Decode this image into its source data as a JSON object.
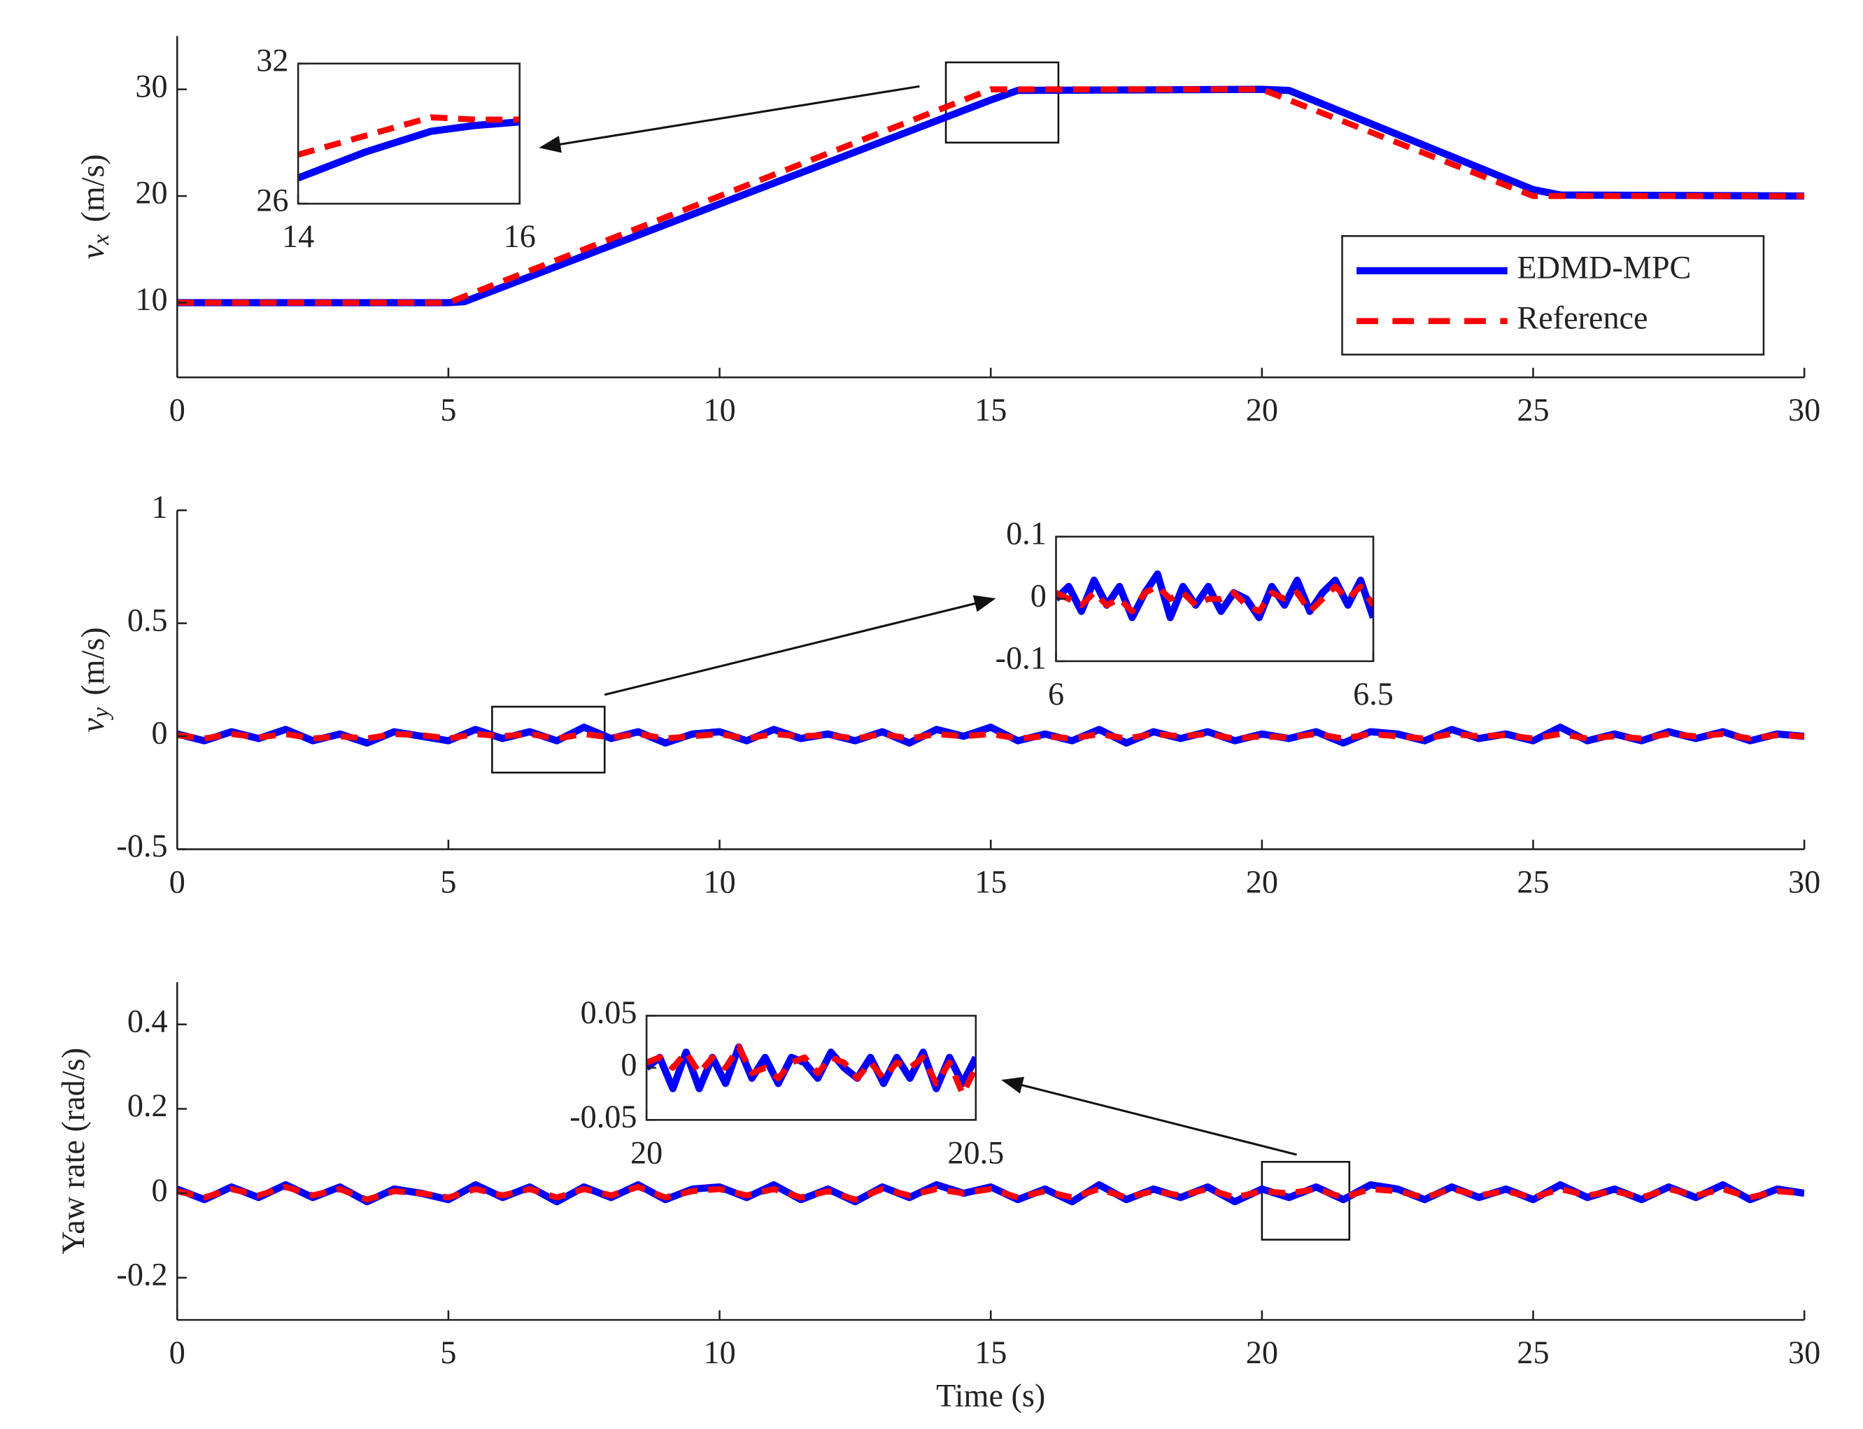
{
  "chart_data": [
    {
      "type": "line",
      "ylabel_symbol": "v",
      "ylabel_subscript": "x",
      "ylabel_unit": "(m/s)",
      "legend": "lower right",
      "x": [
        0,
        5,
        5.3,
        15,
        15.5,
        20,
        20.5,
        25,
        25.5,
        30
      ],
      "series": [
        {
          "name": "EDMD-MPC",
          "color": "#0000ff",
          "linestyle": "solid",
          "values": [
            10,
            10,
            10.1,
            29.0,
            29.9,
            30,
            29.9,
            20.6,
            20.1,
            20
          ]
        },
        {
          "name": "Reference",
          "color": "#ff0000",
          "linestyle": "dashed",
          "values": [
            10,
            10,
            10.6,
            30,
            30,
            30,
            29.0,
            20,
            20,
            20
          ]
        }
      ],
      "xlim": [
        0,
        30
      ],
      "ylim": [
        3,
        35
      ],
      "xticks": [
        0,
        5,
        10,
        15,
        20,
        25,
        30
      ],
      "yticks": [
        10,
        20,
        30
      ]
    },
    {
      "type": "line",
      "x": [
        14,
        14.6,
        15.2,
        15.6,
        16
      ],
      "series": [
        {
          "color": "#0000ff",
          "linestyle": "solid",
          "values": [
            27.1,
            28.2,
            29.1,
            29.35,
            29.5
          ]
        },
        {
          "color": "#ff0000",
          "linestyle": "dashed",
          "values": [
            28.1,
            28.9,
            29.7,
            29.6,
            29.6
          ]
        }
      ],
      "xlim": [
        14,
        16
      ],
      "ylim": [
        26,
        32
      ],
      "xticks": [
        14,
        16
      ],
      "yticks": [
        26,
        32
      ]
    },
    {
      "type": "line",
      "ylabel_symbol": "v",
      "ylabel_subscript": "y",
      "ylabel_unit": "(m/s)",
      "x": [
        0,
        0.5,
        1,
        1.5,
        2,
        2.5,
        3,
        3.5,
        4,
        4.5,
        5,
        5.5,
        6,
        6.5,
        7,
        7.5,
        8,
        8.5,
        9,
        9.5,
        10,
        10.5,
        11,
        11.5,
        12,
        12.5,
        13,
        13.5,
        14,
        14.5,
        15,
        15.5,
        16,
        16.5,
        17,
        17.5,
        18,
        18.5,
        19,
        19.5,
        20,
        20.5,
        21,
        21.5,
        22,
        22.5,
        23,
        23.5,
        24,
        24.5,
        25,
        25.5,
        26,
        26.5,
        27,
        27.5,
        28,
        28.5,
        29,
        29.5,
        30
      ],
      "series": [
        {
          "color": "#0000ff",
          "linestyle": "solid",
          "values": [
            0.01,
            -0.02,
            0.02,
            -0.01,
            0.03,
            -0.02,
            0.01,
            -0.03,
            0.02,
            0,
            -0.02,
            0.03,
            -0.01,
            0.02,
            -0.02,
            0.04,
            -0.01,
            0.02,
            -0.03,
            0.01,
            0.02,
            -0.02,
            0.03,
            -0.01,
            0.01,
            -0.02,
            0.02,
            -0.03,
            0.03,
            0,
            0.04,
            -0.02,
            0.01,
            -0.02,
            0.03,
            -0.03,
            0.02,
            -0.01,
            0.02,
            -0.02,
            0.01,
            -0.01,
            0.02,
            -0.03,
            0.02,
            0.01,
            -0.02,
            0.03,
            -0.01,
            0.01,
            -0.02,
            0.04,
            -0.02,
            0.01,
            -0.02,
            0.02,
            -0.01,
            0.02,
            -0.02,
            0.01,
            0
          ]
        },
        {
          "color": "#ff0000",
          "linestyle": "dashed",
          "values": [
            0.005,
            -0.01,
            0.01,
            -0.005,
            0.01,
            -0.01,
            0,
            -0.01,
            0.01,
            0.005,
            -0.01,
            0.01,
            0,
            0.01,
            -0.01,
            0.01,
            -0.005,
            0.01,
            -0.01,
            0,
            0.01,
            -0.01,
            0.01,
            0,
            0.005,
            -0.01,
            0.01,
            -0.01,
            0.01,
            0,
            0.01,
            -0.01,
            0,
            -0.01,
            0.01,
            -0.01,
            0.01,
            0,
            0.01,
            -0.01,
            0,
            -0.005,
            0.01,
            -0.01,
            0.01,
            0,
            -0.01,
            0.01,
            0,
            0.005,
            -0.01,
            0.01,
            -0.01,
            0,
            -0.01,
            0.01,
            0,
            0.01,
            -0.01,
            0.005,
            0
          ]
        }
      ],
      "xlim": [
        0,
        30
      ],
      "ylim": [
        -0.5,
        1
      ],
      "xticks": [
        0,
        5,
        10,
        15,
        20,
        25,
        30
      ],
      "yticks": [
        -0.5,
        0,
        0.5,
        1
      ]
    },
    {
      "type": "line",
      "x": [
        6,
        6.02,
        6.04,
        6.06,
        6.08,
        6.1,
        6.12,
        6.14,
        6.16,
        6.18,
        6.2,
        6.22,
        6.24,
        6.26,
        6.28,
        6.3,
        6.32,
        6.34,
        6.36,
        6.38,
        6.4,
        6.42,
        6.44,
        6.46,
        6.48,
        6.5
      ],
      "series": [
        {
          "color": "#0000ff",
          "linestyle": "solid",
          "values": [
            0,
            0.02,
            -0.02,
            0.03,
            -0.01,
            0.02,
            -0.03,
            0.01,
            0.04,
            -0.03,
            0.02,
            -0.01,
            0.02,
            -0.02,
            0.01,
            0,
            -0.03,
            0.02,
            -0.01,
            0.03,
            -0.02,
            0.01,
            0.03,
            -0.01,
            0.03,
            -0.03
          ]
        },
        {
          "color": "#ff0000",
          "linestyle": "dashed",
          "values": [
            0.01,
            0,
            -0.01,
            0.01,
            -0.01,
            0,
            -0.02,
            0.01,
            0.02,
            0,
            0.01,
            -0.01,
            0,
            0,
            0.01,
            -0.01,
            -0.02,
            0.01,
            0,
            0.01,
            -0.02,
            0,
            0.02,
            0,
            0.02,
            -0.01
          ]
        }
      ],
      "xlim": [
        6,
        6.5
      ],
      "ylim": [
        -0.1,
        0.1
      ],
      "xticks": [
        6,
        6.5
      ],
      "yticks": [
        -0.1,
        0,
        0.1
      ]
    },
    {
      "type": "line",
      "ylabel": "Yaw rate (rad/s)",
      "xlabel": "Time (s)",
      "x": [
        0,
        0.5,
        1,
        1.5,
        2,
        2.5,
        3,
        3.5,
        4,
        4.5,
        5,
        5.5,
        6,
        6.5,
        7,
        7.5,
        8,
        8.5,
        9,
        9.5,
        10,
        10.5,
        11,
        11.5,
        12,
        12.5,
        13,
        13.5,
        14,
        14.5,
        15,
        15.5,
        16,
        16.5,
        17,
        17.5,
        18,
        18.5,
        19,
        19.5,
        20,
        20.5,
        21,
        21.5,
        22,
        22.5,
        23,
        23.5,
        24,
        24.5,
        25,
        25.5,
        26,
        26.5,
        27,
        27.5,
        28,
        28.5,
        29,
        29.5,
        30
      ],
      "series": [
        {
          "color": "#0000ff",
          "linestyle": "solid",
          "values": [
            0.01,
            -0.015,
            0.015,
            -0.01,
            0.02,
            -0.01,
            0.015,
            -0.02,
            0.01,
            0,
            -0.015,
            0.02,
            -0.01,
            0.015,
            -0.02,
            0.015,
            -0.01,
            0.02,
            -0.015,
            0.01,
            0.015,
            -0.01,
            0.02,
            -0.015,
            0.01,
            -0.02,
            0.015,
            -0.01,
            0.02,
            0,
            0.015,
            -0.015,
            0.01,
            -0.02,
            0.02,
            -0.015,
            0.01,
            -0.01,
            0.015,
            -0.02,
            0.01,
            -0.01,
            0.015,
            -0.015,
            0.02,
            0.01,
            -0.015,
            0.015,
            -0.01,
            0.01,
            -0.015,
            0.02,
            -0.01,
            0.01,
            -0.015,
            0.015,
            -0.01,
            0.02,
            -0.015,
            0.01,
            0
          ]
        },
        {
          "color": "#ff0000",
          "linestyle": "dashed",
          "values": [
            0.005,
            -0.01,
            0.01,
            -0.005,
            0.015,
            -0.005,
            0.01,
            -0.015,
            0.005,
            0,
            -0.01,
            0.01,
            -0.005,
            0.01,
            -0.01,
            0.01,
            -0.005,
            0.015,
            -0.01,
            0.005,
            0.01,
            -0.005,
            0.01,
            -0.01,
            0.005,
            -0.015,
            0.01,
            -0.005,
            0.01,
            0,
            0.01,
            -0.01,
            0.005,
            -0.01,
            0.01,
            -0.01,
            0.005,
            -0.005,
            0.01,
            -0.01,
            0.005,
            0,
            0.01,
            -0.01,
            0.01,
            0.005,
            -0.01,
            0.01,
            -0.005,
            0.005,
            -0.01,
            0.01,
            -0.005,
            0.005,
            -0.01,
            0.01,
            -0.005,
            0.01,
            -0.01,
            0.005,
            0
          ]
        }
      ],
      "xlim": [
        0,
        30
      ],
      "ylim": [
        -0.3,
        0.5
      ],
      "xticks": [
        0,
        5,
        10,
        15,
        20,
        25,
        30
      ],
      "yticks": [
        -0.2,
        0,
        0.2,
        0.4
      ]
    },
    {
      "type": "line",
      "x": [
        20,
        20.02,
        20.04,
        20.06,
        20.08,
        20.1,
        20.12,
        20.14,
        20.16,
        20.18,
        20.2,
        20.22,
        20.24,
        20.26,
        20.28,
        20.3,
        20.32,
        20.34,
        20.36,
        20.38,
        20.4,
        20.42,
        20.44,
        20.46,
        20.48,
        20.5
      ],
      "series": [
        {
          "color": "#0000ff",
          "linestyle": "solid",
          "values": [
            0,
            0.01,
            -0.02,
            0.015,
            -0.02,
            0.01,
            -0.015,
            0.02,
            -0.01,
            0.01,
            -0.015,
            0.01,
            0.005,
            -0.01,
            0.015,
            0,
            -0.01,
            0.01,
            -0.015,
            0.01,
            -0.01,
            0.015,
            -0.02,
            0.01,
            -0.015,
            0.01
          ]
        },
        {
          "color": "#ff0000",
          "linestyle": "dashed",
          "values": [
            0.005,
            0.01,
            0,
            0.015,
            -0.005,
            0.01,
            0,
            0.02,
            -0.005,
            0,
            -0.01,
            0.005,
            0.01,
            -0.005,
            0.01,
            0.005,
            -0.01,
            0.005,
            -0.01,
            0.005,
            0,
            0.01,
            -0.015,
            0.005,
            -0.025,
            0
          ]
        }
      ],
      "xlim": [
        20,
        20.5
      ],
      "ylim": [
        -0.05,
        0.05
      ],
      "xticks": [
        20,
        20.5
      ],
      "yticks": [
        -0.05,
        0,
        0.05
      ]
    }
  ]
}
